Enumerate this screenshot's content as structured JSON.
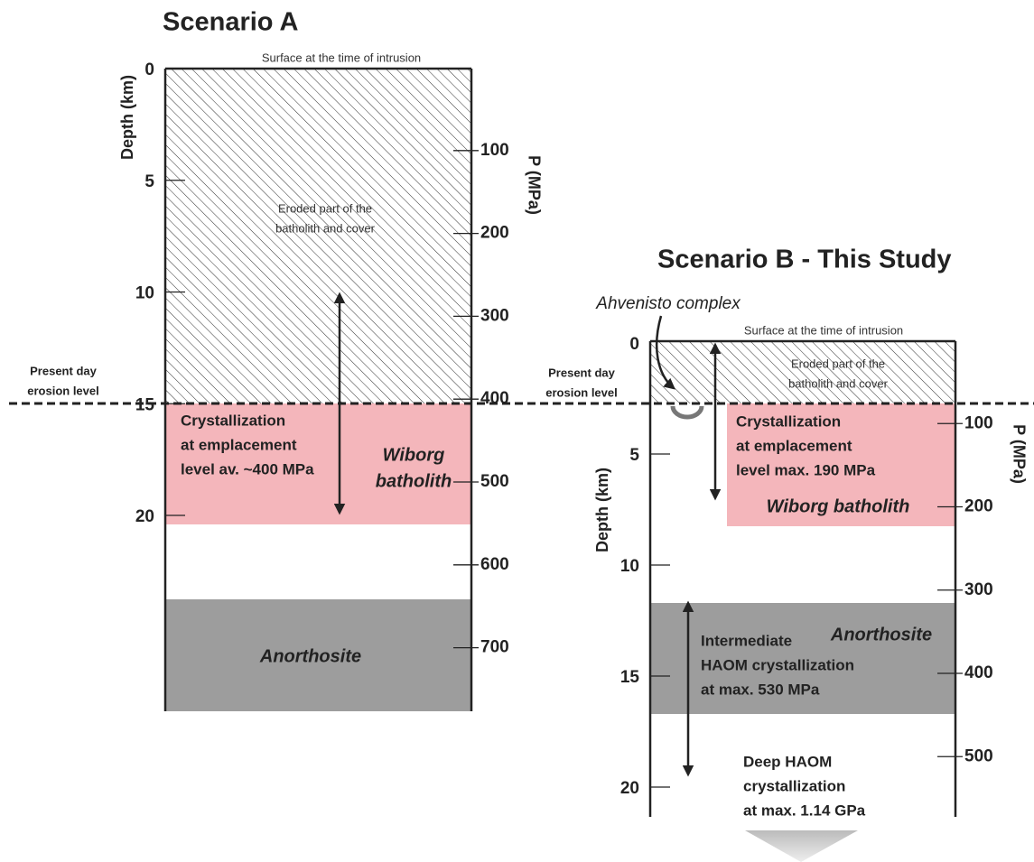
{
  "scenario_a": {
    "title": "Scenario A",
    "surface_label": "Surface at the time of intrusion",
    "eroded_label": [
      "Eroded part of the",
      "batholith and cover"
    ],
    "erosion_label": [
      "Present day",
      "erosion level"
    ],
    "emplacement_label": [
      "Crystallization",
      "at emplacement",
      "level av. ~400 MPa"
    ],
    "wiborg_label": [
      "Wiborg",
      "batholith"
    ],
    "anorthosite_label": "Anorthosite",
    "depth_axis": {
      "label": "Depth (km)",
      "ticks": [
        0,
        5,
        10,
        15,
        20
      ]
    },
    "pressure_axis": {
      "label": "P (MPa)",
      "ticks": [
        100,
        200,
        300,
        400,
        500,
        600,
        700
      ]
    }
  },
  "scenario_b": {
    "title": "Scenario B - This Study",
    "ahvenisto_label": "Ahvenisto complex",
    "surface_label": "Surface at the time of intrusion",
    "eroded_label": [
      "Eroded part of the",
      "batholith and cover"
    ],
    "erosion_label": [
      "Present day",
      "erosion level"
    ],
    "emplacement_label": [
      "Crystallization",
      "at emplacement",
      "level max. 190 MPa"
    ],
    "wiborg_label": "Wiborg batholith",
    "anorthosite_label": "Anorthosite",
    "intermediate_label": [
      "Intermediate",
      "HAOM crystallization",
      "at max. 530 MPa"
    ],
    "deep_label": [
      "Deep HAOM",
      "crystallization",
      "at max. 1.14 GPa"
    ],
    "depth_axis": {
      "label": "Depth (km)",
      "ticks": [
        0,
        5,
        10,
        15,
        20
      ]
    },
    "pressure_axis": {
      "label": "P (MPa)",
      "ticks": [
        100,
        200,
        300,
        400,
        500
      ]
    }
  }
}
